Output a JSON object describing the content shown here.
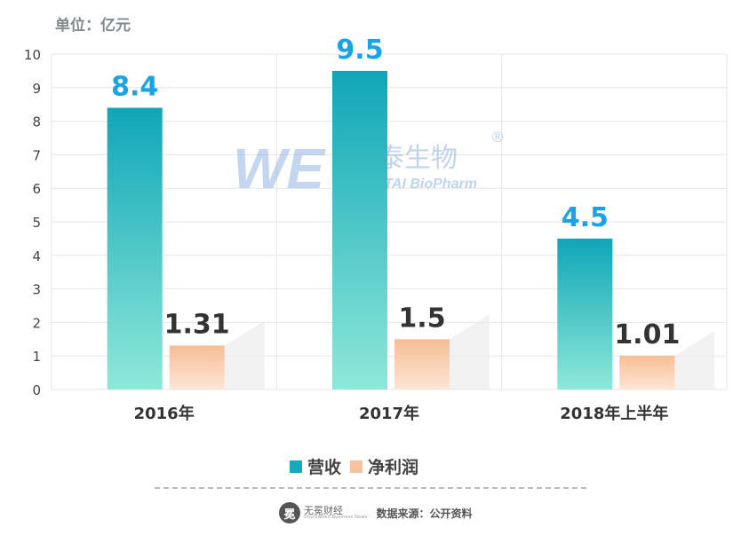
{
  "unit_label": "单位：亿元",
  "watermark": {
    "cn": "万泰生物",
    "en": "WANTAI BioPharm",
    "reg": "®"
  },
  "legend": [
    {
      "label": "营收",
      "color": "#17a9bd"
    },
    {
      "label": "净利润",
      "color": "#f7c39e"
    }
  ],
  "footer": {
    "logo_cn": "无冕财经",
    "logo_en": "Uncrowned Business News",
    "source": "数据来源：公开资料"
  },
  "chart_data": {
    "type": "bar",
    "categories": [
      "2016年",
      "2017年",
      "2018年上半年"
    ],
    "series": [
      {
        "name": "营收",
        "values": [
          8.4,
          9.5,
          4.5
        ],
        "labels": [
          "8.4",
          "9.5",
          "4.5"
        ],
        "label_color": "#1aa3e6"
      },
      {
        "name": "净利润",
        "values": [
          1.31,
          1.5,
          1.01
        ],
        "labels": [
          "1.31",
          "1.5",
          "1.01"
        ],
        "label_color": "#333333"
      }
    ],
    "ylim": [
      0,
      10
    ],
    "yticks": [
      0,
      1,
      2,
      3,
      4,
      5,
      6,
      7,
      8,
      9,
      10
    ],
    "grid": true,
    "xlabel": "",
    "ylabel": ""
  }
}
